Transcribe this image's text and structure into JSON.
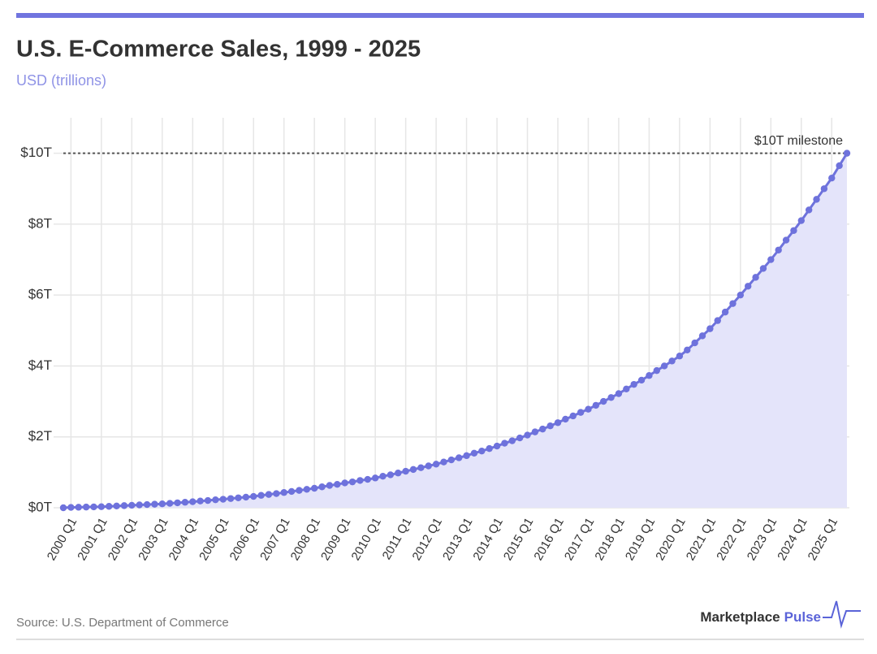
{
  "chart_data": {
    "type": "line",
    "title": "U.S. E-Commerce Sales, 1999 - 2025",
    "subtitle": "USD (trillions)",
    "source": "Source: U.S. Department of Commerce",
    "brand": {
      "name": "Marketplace",
      "accent": "Pulse"
    },
    "color": "#6e72dc",
    "area_color": "#e4e4fa",
    "grid": true,
    "reference_line": {
      "value": 10,
      "label": "$10T milestone"
    },
    "ylim": [
      0,
      11
    ],
    "yticks": [
      {
        "value": 0,
        "label": "$0T"
      },
      {
        "value": 2,
        "label": "$2T"
      },
      {
        "value": 4,
        "label": "$4T"
      },
      {
        "value": 6,
        "label": "$6T"
      },
      {
        "value": 8,
        "label": "$8T"
      },
      {
        "value": 10,
        "label": "$10T"
      }
    ],
    "categories": [
      null,
      "2000 Q1",
      null,
      null,
      null,
      "2001 Q1",
      null,
      null,
      null,
      "2002 Q1",
      null,
      null,
      null,
      "2003 Q1",
      null,
      null,
      null,
      "2004 Q1",
      null,
      null,
      null,
      "2005 Q1",
      null,
      null,
      null,
      "2006 Q1",
      null,
      null,
      null,
      "2007 Q1",
      null,
      null,
      null,
      "2008 Q1",
      null,
      null,
      null,
      "2009 Q1",
      null,
      null,
      null,
      "2010 Q1",
      null,
      null,
      null,
      "2011 Q1",
      null,
      null,
      null,
      "2012 Q1",
      null,
      null,
      null,
      "2013 Q1",
      null,
      null,
      null,
      "2014 Q1",
      null,
      null,
      null,
      "2015 Q1",
      null,
      null,
      null,
      "2016 Q1",
      null,
      null,
      null,
      "2017 Q1",
      null,
      null,
      null,
      "2018 Q1",
      null,
      null,
      null,
      "2019 Q1",
      null,
      null,
      null,
      "2020 Q1",
      null,
      null,
      null,
      "2021 Q1",
      null,
      null,
      null,
      "2022 Q1",
      null,
      null,
      null,
      "2023 Q1",
      null,
      null,
      null,
      "2024 Q1",
      null,
      null,
      null,
      "2025 Q1",
      null,
      null
    ],
    "values": [
      0.0,
      0.01,
      0.015,
      0.02,
      0.025,
      0.03,
      0.04,
      0.05,
      0.06,
      0.07,
      0.08,
      0.09,
      0.1,
      0.11,
      0.125,
      0.14,
      0.155,
      0.17,
      0.19,
      0.205,
      0.225,
      0.24,
      0.26,
      0.28,
      0.3,
      0.32,
      0.35,
      0.375,
      0.4,
      0.43,
      0.46,
      0.49,
      0.52,
      0.55,
      0.59,
      0.63,
      0.66,
      0.7,
      0.73,
      0.77,
      0.8,
      0.84,
      0.89,
      0.93,
      0.98,
      1.03,
      1.08,
      1.13,
      1.18,
      1.23,
      1.29,
      1.35,
      1.41,
      1.47,
      1.54,
      1.6,
      1.67,
      1.74,
      1.82,
      1.89,
      1.97,
      2.05,
      2.14,
      2.22,
      2.31,
      2.4,
      2.5,
      2.59,
      2.69,
      2.78,
      2.89,
      3.0,
      3.11,
      3.22,
      3.35,
      3.48,
      3.6,
      3.73,
      3.87,
      4.0,
      4.14,
      4.28,
      4.45,
      4.65,
      4.85,
      5.05,
      5.28,
      5.52,
      5.76,
      6.0,
      6.25,
      6.5,
      6.75,
      7.0,
      7.27,
      7.55,
      7.82,
      8.1,
      8.4,
      8.7,
      9.0,
      9.3,
      9.65,
      10.0
    ]
  }
}
